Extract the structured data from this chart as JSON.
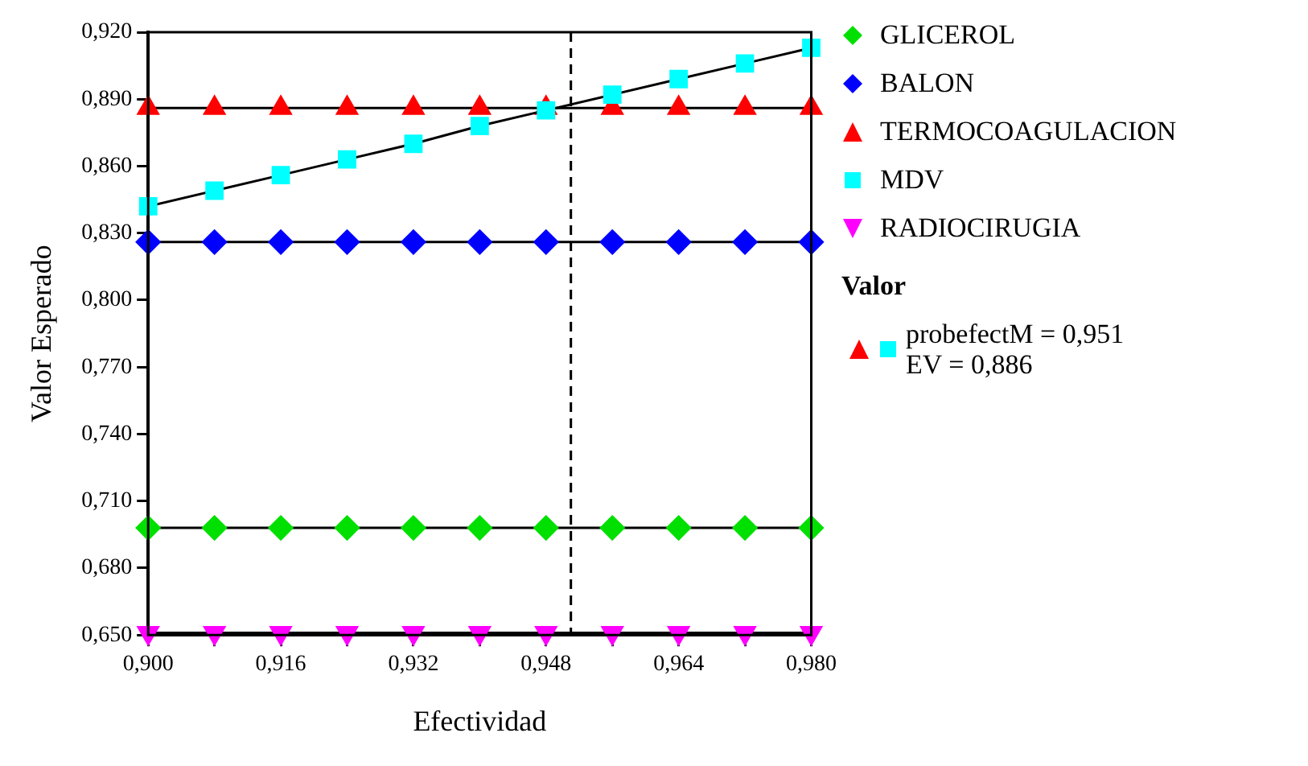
{
  "chart_data": {
    "type": "line",
    "xlabel": "Efectividad",
    "ylabel": "Valor Esperado",
    "x": [
      0.9,
      0.908,
      0.916,
      0.924,
      0.932,
      0.94,
      0.948,
      0.956,
      0.964,
      0.972,
      0.98
    ],
    "series": [
      {
        "name": "GLICEROL",
        "color": "#00e000",
        "marker": "diamond",
        "values": [
          0.698,
          0.698,
          0.698,
          0.698,
          0.698,
          0.698,
          0.698,
          0.698,
          0.698,
          0.698,
          0.698
        ]
      },
      {
        "name": "BALON",
        "color": "#0000ff",
        "marker": "diamond",
        "values": [
          0.826,
          0.826,
          0.826,
          0.826,
          0.826,
          0.826,
          0.826,
          0.826,
          0.826,
          0.826,
          0.826
        ]
      },
      {
        "name": "TERMOCOAGULACION",
        "color": "#ff0000",
        "marker": "triangle",
        "values": [
          0.886,
          0.886,
          0.886,
          0.886,
          0.886,
          0.886,
          0.886,
          0.886,
          0.886,
          0.886,
          0.886
        ]
      },
      {
        "name": "MDV",
        "color": "#00ffff",
        "marker": "square",
        "values": [
          0.842,
          0.849,
          0.856,
          0.863,
          0.87,
          0.878,
          0.885,
          0.892,
          0.899,
          0.906,
          0.913
        ]
      },
      {
        "name": "RADIOCIRUGIA",
        "color": "#ff00ff",
        "marker": "triangle-down",
        "values": [
          0.651,
          0.651,
          0.651,
          0.651,
          0.651,
          0.651,
          0.651,
          0.651,
          0.651,
          0.651,
          0.651
        ]
      }
    ],
    "xlim": [
      0.9,
      0.98
    ],
    "xticks": [
      {
        "value": 0.9,
        "label": "0,900"
      },
      {
        "value": 0.908,
        "label": null
      },
      {
        "value": 0.916,
        "label": "0,916"
      },
      {
        "value": 0.924,
        "label": null
      },
      {
        "value": 0.932,
        "label": "0,932"
      },
      {
        "value": 0.94,
        "label": null
      },
      {
        "value": 0.948,
        "label": "0,948"
      },
      {
        "value": 0.956,
        "label": null
      },
      {
        "value": 0.964,
        "label": "0,964"
      },
      {
        "value": 0.972,
        "label": null
      },
      {
        "value": 0.98,
        "label": "0,980"
      }
    ],
    "ylim": [
      0.65,
      0.92
    ],
    "yticks": [
      {
        "value": 0.65,
        "label": "0,650"
      },
      {
        "value": 0.68,
        "label": "0,680"
      },
      {
        "value": 0.71,
        "label": "0,710"
      },
      {
        "value": 0.74,
        "label": "0,740"
      },
      {
        "value": 0.77,
        "label": "0,770"
      },
      {
        "value": 0.8,
        "label": "0,800"
      },
      {
        "value": 0.83,
        "label": "0,830"
      },
      {
        "value": 0.86,
        "label": "0,860"
      },
      {
        "value": 0.89,
        "label": "0,890"
      },
      {
        "value": 0.92,
        "label": "0,920"
      }
    ],
    "ref_lines": [
      {
        "axis": "x",
        "value": 0.951,
        "line_style": "dashed",
        "color": "#000000"
      }
    ],
    "legend_title": "Valor",
    "annotations": [
      "probefectM = 0,951",
      "EV = 0,886"
    ],
    "legend": "right",
    "grid": false,
    "line_style": "solid"
  }
}
